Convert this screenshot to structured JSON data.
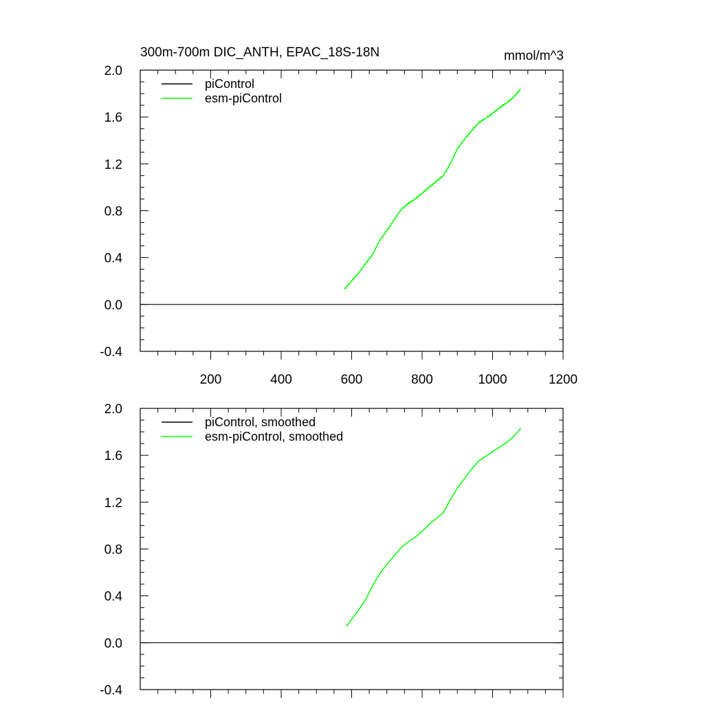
{
  "title_left": "300m-700m DIC_ANTH, EPAC_18S-18N",
  "title_right": "mmol/m^3",
  "colors": {
    "piControl": "#000000",
    "esm-piControl": "#00ff00",
    "background": "#ffffff"
  },
  "chart_data": [
    {
      "type": "line",
      "xlim": [
        0,
        1200
      ],
      "ylim": [
        -0.4,
        2.0
      ],
      "x_ticks": [
        200,
        400,
        600,
        800,
        1000,
        1200
      ],
      "x_tick_labels": [
        "200",
        "400",
        "600",
        "800",
        "1000",
        "1200"
      ],
      "y_ticks": [
        -0.4,
        0.0,
        0.4,
        0.8,
        1.2,
        1.6,
        2.0
      ],
      "y_tick_labels": [
        "-0.4",
        "0.0",
        "0.4",
        "0.8",
        "1.2",
        "1.6",
        "2.0"
      ],
      "legend_position": "top-left",
      "grid": false,
      "series": [
        {
          "name": "piControl",
          "color": "#000000",
          "x": [
            0,
            1200
          ],
          "y": [
            0.0,
            0.0
          ]
        },
        {
          "name": "esm-piControl",
          "color": "#00ff00",
          "noisy": true,
          "x": [
            580,
            600,
            620,
            640,
            660,
            680,
            700,
            720,
            740,
            760,
            780,
            800,
            820,
            840,
            860,
            880,
            900,
            920,
            940,
            960,
            980,
            1000,
            1020,
            1040,
            1060,
            1080
          ],
          "y": [
            0.13,
            0.2,
            0.27,
            0.35,
            0.43,
            0.55,
            0.63,
            0.72,
            0.81,
            0.86,
            0.9,
            0.95,
            1.0,
            1.05,
            1.1,
            1.2,
            1.33,
            1.41,
            1.48,
            1.55,
            1.59,
            1.63,
            1.68,
            1.72,
            1.77,
            1.84
          ]
        }
      ]
    },
    {
      "type": "line",
      "xlim": [
        0,
        1200
      ],
      "ylim": [
        -0.4,
        2.0
      ],
      "y_ticks": [
        -0.4,
        0.0,
        0.4,
        0.8,
        1.2,
        1.6,
        2.0
      ],
      "y_tick_labels": [
        "-0.4",
        "0.0",
        "0.4",
        "0.8",
        "1.2",
        "1.6",
        "2.0"
      ],
      "x_ticks": [
        200,
        400,
        600,
        800,
        1000,
        1200
      ],
      "legend_position": "top-left",
      "grid": false,
      "series": [
        {
          "name": "piControl, smoothed",
          "color": "#000000",
          "x": [
            0,
            1200
          ],
          "y": [
            0.0,
            0.0
          ]
        },
        {
          "name": "esm-piControl, smoothed",
          "color": "#00ff00",
          "noisy": false,
          "x": [
            585,
            600,
            620,
            640,
            660,
            680,
            700,
            720,
            740,
            760,
            780,
            800,
            820,
            840,
            860,
            880,
            900,
            920,
            940,
            960,
            980,
            1000,
            1020,
            1040,
            1060,
            1080
          ],
          "y": [
            0.14,
            0.2,
            0.28,
            0.37,
            0.49,
            0.59,
            0.67,
            0.74,
            0.81,
            0.86,
            0.9,
            0.95,
            1.01,
            1.06,
            1.11,
            1.22,
            1.32,
            1.4,
            1.48,
            1.55,
            1.59,
            1.63,
            1.67,
            1.71,
            1.76,
            1.83
          ]
        }
      ]
    }
  ]
}
